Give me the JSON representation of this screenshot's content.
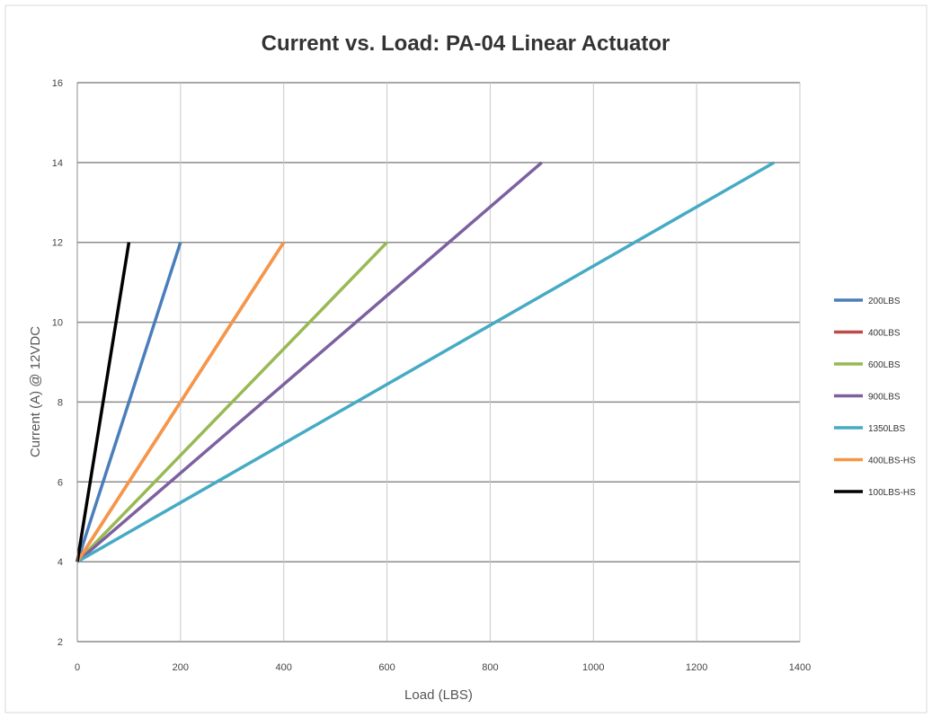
{
  "chart_data": {
    "type": "line",
    "title": "Current vs. Load: PA-04 Linear Actuator",
    "xlabel": "Load (LBS)",
    "ylabel": "Current (A) @ 12VDC",
    "xlim": [
      0,
      1400
    ],
    "ylim": [
      2,
      16
    ],
    "xticks": [
      0,
      200,
      400,
      600,
      800,
      1000,
      1200,
      1400
    ],
    "yticks": [
      2,
      4,
      6,
      8,
      10,
      12,
      14,
      16
    ],
    "grid": true,
    "legend_position": "right",
    "series": [
      {
        "name": "200LBS",
        "color": "#4a7ebb",
        "x": [
          0,
          200
        ],
        "y": [
          4,
          12
        ]
      },
      {
        "name": "400LBS",
        "color": "#be4b48",
        "x": [
          0,
          400
        ],
        "y": [
          4,
          12
        ]
      },
      {
        "name": "600LBS",
        "color": "#98b954",
        "x": [
          0,
          600
        ],
        "y": [
          4,
          12
        ]
      },
      {
        "name": "900LBS",
        "color": "#7d60a0",
        "x": [
          0,
          900
        ],
        "y": [
          4,
          14
        ]
      },
      {
        "name": "1350LBS",
        "color": "#46aac5",
        "x": [
          0,
          1350
        ],
        "y": [
          4,
          14
        ]
      },
      {
        "name": "400LBS-HS",
        "color": "#f79646",
        "x": [
          0,
          400
        ],
        "y": [
          4,
          12
        ]
      },
      {
        "name": "100LBS-HS",
        "color": "#000000",
        "x": [
          0,
          100
        ],
        "y": [
          4,
          12
        ]
      }
    ]
  }
}
